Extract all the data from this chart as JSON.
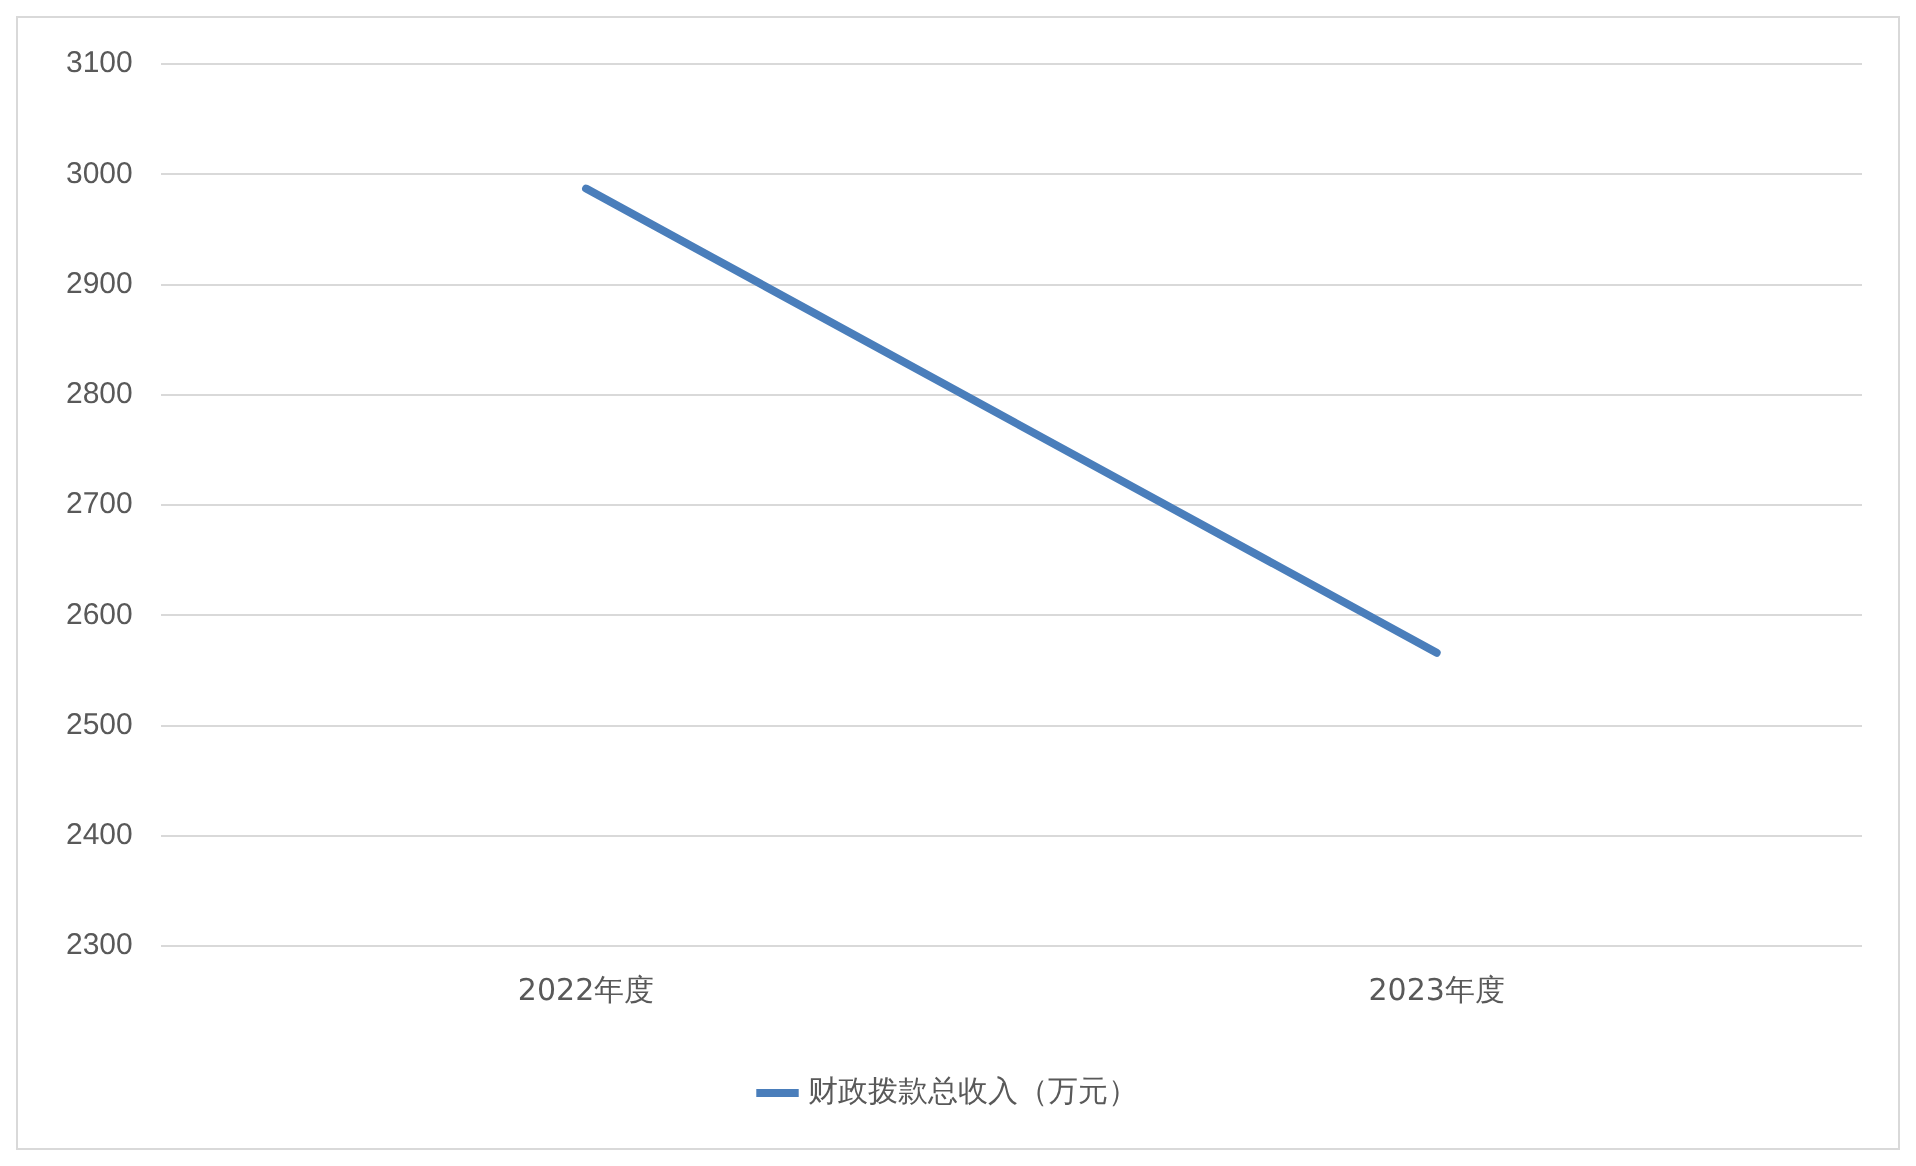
{
  "chart_data": {
    "type": "line",
    "categories": [
      "2022年度",
      "2023年度"
    ],
    "series": [
      {
        "name": "财政拨款总收入（万元）",
        "color": "#4a7ebb",
        "values": [
          2987,
          2566
        ]
      }
    ],
    "ylim": [
      2300,
      3100
    ],
    "yticks": [
      2300,
      2400,
      2500,
      2600,
      2700,
      2800,
      2900,
      3000,
      3100
    ],
    "grid": "y",
    "legend": "bottom"
  }
}
